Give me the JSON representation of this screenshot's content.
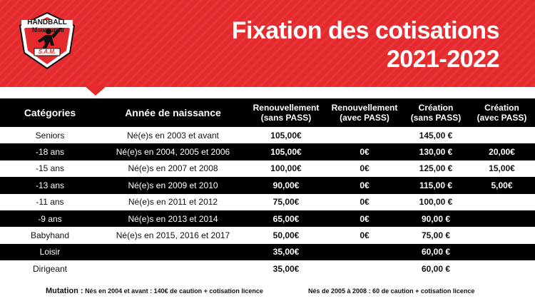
{
  "header": {
    "title_line1": "Fixation des cotisations",
    "title_line2": "2021-2022",
    "banner_color": "#e52a2d"
  },
  "logo": {
    "text_top": "HANDBALL",
    "text_script": "Moncoutant",
    "text_bottom": "S.A.M.",
    "icon": "handball-player-shield-logo"
  },
  "table": {
    "columns": [
      "Catégories",
      "Année de naissance",
      "Renouvellement\n(sans PASS)",
      "Renouvellement\n(avec PASS)",
      "Création\n(sans PASS)",
      "Création\n(avec PASS)"
    ],
    "rows": [
      [
        "Seniors",
        "Né(e)s en 2003 et avant",
        "105,00€",
        "",
        "145,00 €",
        ""
      ],
      [
        "-18 ans",
        "Né(e)s en 2004, 2005 et 2006",
        "105,00€",
        "0€",
        "130,00 €",
        "20,00€"
      ],
      [
        "-15 ans",
        "Né(e)s en 2007 et 2008",
        "100,00€",
        "0€",
        "125,00 €",
        "15,00€"
      ],
      [
        "-13 ans",
        "Né(e)s en 2009 et 2010",
        "90,00€",
        "0€",
        "115,00 €",
        "5,00€"
      ],
      [
        "-11 ans",
        "Né(e)s en 2011 et 2012",
        "75,00€",
        "0€",
        "100,00 €",
        ""
      ],
      [
        "-9 ans",
        "Né(e)s en 2013 et 2014",
        "65,00€",
        "0€",
        "90,00 €",
        ""
      ],
      [
        "Babyhand",
        "Né(e)s en 2015, 2016 et 2017",
        "50,00€",
        "0€",
        "75,00 €",
        ""
      ],
      [
        "Loisir",
        "",
        "35,00€",
        "",
        "60,00 €",
        ""
      ],
      [
        "Dirigeant",
        "",
        "35,00€",
        "",
        "60,00 €",
        ""
      ]
    ]
  },
  "footer": {
    "mutation_label": "Mutation :",
    "mutation_text1": "Nés en 2004 et avant : 140€ de caution + cotisation licence",
    "mutation_text2": "Nés de 2005 à 2008 : 60 de caution + cotisation licence"
  }
}
